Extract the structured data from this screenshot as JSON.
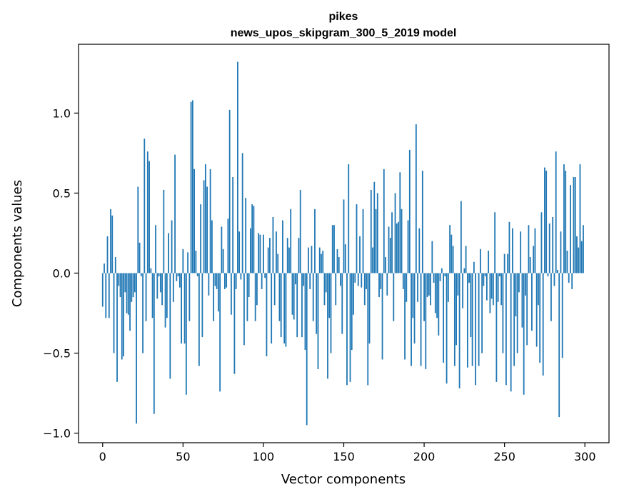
{
  "chart_data": {
    "type": "bar",
    "title": "pikes",
    "subtitle": "news_upos_skipgram_300_5_2019 model",
    "xlabel": "Vector components",
    "ylabel": "Components values",
    "xlim": [
      -15,
      315
    ],
    "ylim": [
      -1.06,
      1.43
    ],
    "xticks": [
      0,
      50,
      100,
      150,
      200,
      250,
      300
    ],
    "xtick_labels": [
      "0",
      "50",
      "100",
      "150",
      "200",
      "250",
      "300"
    ],
    "yticks": [
      -1.0,
      -0.5,
      0.0,
      0.5,
      1.0
    ],
    "ytick_labels": [
      "−1.0",
      "−0.5",
      "0.0",
      "0.5",
      "1.0"
    ],
    "bar_color": "#1f77b4",
    "grid": false,
    "values": [
      -0.21,
      0.06,
      -0.28,
      0.23,
      -0.28,
      0.4,
      0.36,
      -0.5,
      0.1,
      -0.68,
      -0.08,
      -0.15,
      -0.54,
      -0.52,
      -0.12,
      -0.25,
      -0.26,
      -0.36,
      -0.18,
      -0.15,
      -0.12,
      -0.94,
      0.54,
      0.19,
      -0.02,
      -0.5,
      0.84,
      -0.3,
      0.76,
      0.7,
      0.03,
      -0.28,
      -0.88,
      0.3,
      -0.16,
      -0.02,
      -0.12,
      -0.2,
      0.52,
      -0.34,
      -0.28,
      0.25,
      -0.66,
      0.33,
      -0.18,
      0.74,
      -0.05,
      -0.02,
      -0.09,
      -0.44,
      0.15,
      -0.44,
      -0.76,
      0.13,
      -0.3,
      1.07,
      1.08,
      0.65,
      0.14,
      -0.02,
      -0.58,
      0.43,
      -0.4,
      0.58,
      0.68,
      0.54,
      -0.14,
      0.65,
      0.33,
      -0.3,
      -0.08,
      -0.1,
      -0.24,
      -0.74,
      0.29,
      0.15,
      -0.1,
      -0.09,
      0.34,
      1.02,
      -0.26,
      0.6,
      -0.63,
      -0.1,
      1.32,
      0.26,
      -0.04,
      0.75,
      -0.45,
      0.47,
      -0.3,
      -0.15,
      0.28,
      0.43,
      0.42,
      -0.3,
      -0.2,
      0.25,
      0.24,
      -0.1,
      0.24,
      -0.03,
      -0.52,
      0.16,
      0.22,
      -0.44,
      0.35,
      -0.2,
      0.26,
      0.12,
      -0.3,
      -0.4,
      0.33,
      -0.44,
      -0.46,
      0.22,
      0.16,
      0.4,
      -0.26,
      -0.29,
      -0.07,
      -0.4,
      0.22,
      0.52,
      -0.4,
      -0.08,
      -0.48,
      -0.95,
      0.16,
      -0.1,
      0.17,
      -0.3,
      0.4,
      -0.38,
      -0.6,
      0.16,
      0.12,
      0.14,
      -0.2,
      -0.12,
      -0.66,
      -0.28,
      -0.5,
      0.3,
      0.3,
      -0.2,
      0.15,
      0.1,
      -0.08,
      -0.38,
      0.46,
      0.18,
      -0.7,
      0.68,
      -0.68,
      -0.48,
      -0.26,
      -0.06,
      0.43,
      -0.08,
      0.23,
      -0.09,
      0.4,
      -0.2,
      -0.1,
      -0.7,
      -0.44,
      0.52,
      0.16,
      0.57,
      0.4,
      0.5,
      -0.15,
      -0.1,
      -0.54,
      0.65,
      0.1,
      -0.14,
      0.29,
      0.22,
      0.38,
      -0.3,
      0.5,
      0.31,
      0.32,
      0.63,
      0.4,
      -0.1,
      -0.54,
      -0.18,
      0.33,
      0.77,
      -0.58,
      -0.28,
      -0.44,
      0.93,
      -0.18,
      0.28,
      -0.58,
      0.64,
      -0.3,
      -0.6,
      -0.15,
      -0.14,
      -0.2,
      0.2,
      -0.06,
      -0.25,
      -0.28,
      -0.39,
      -0.05,
      0.03,
      -0.56,
      -0.02,
      -0.69,
      -0.18,
      0.3,
      0.24,
      0.17,
      -0.58,
      -0.45,
      -0.14,
      -0.72,
      0.45,
      -0.22,
      0.03,
      0.17,
      -0.59,
      -0.06,
      -0.4,
      -0.58,
      0.07,
      -0.7,
      0.0,
      -0.58,
      0.15,
      -0.5,
      -0.08,
      -0.02,
      -0.17,
      0.14,
      -0.25,
      -0.16,
      -0.2,
      0.38,
      -0.68,
      -0.18,
      -0.02,
      -0.2,
      -0.5,
      0.12,
      -0.7,
      0.12,
      0.32,
      -0.74,
      0.28,
      -0.58,
      -0.27,
      -0.5,
      -0.12,
      0.26,
      -0.34,
      -0.76,
      -0.14,
      -0.45,
      0.3,
      0.1,
      -0.36,
      0.17,
      0.28,
      -0.46,
      -0.2,
      -0.56,
      0.38,
      -0.64,
      0.66,
      0.64,
      -0.02,
      0.31,
      -0.3,
      0.35,
      -0.08,
      0.76,
      0.02,
      -0.9,
      0.26,
      -0.53,
      0.68,
      0.64,
      0.14,
      -0.06,
      0.55,
      -0.1,
      0.6,
      0.6,
      0.23,
      0.16,
      0.68,
      0.2,
      0.3
    ]
  }
}
